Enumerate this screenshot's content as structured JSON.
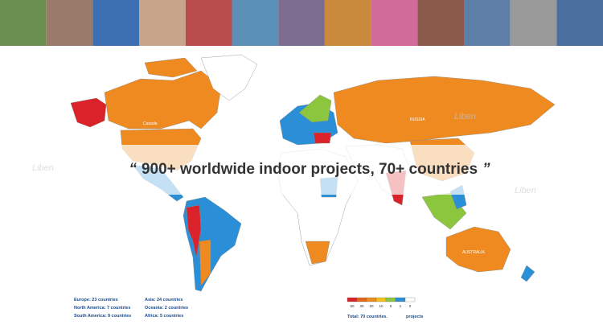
{
  "headline": {
    "open_quote": "“",
    "text": "900+ worldwide indoor projects, 70+ countries",
    "close_quote": "”"
  },
  "map_labels": {
    "canada": "Canada",
    "russia": "RUSSIA",
    "australia": "AUSTRALIA"
  },
  "watermark": "Liben",
  "regions": [
    "Europe: 23 countries",
    "North America: 7 countries",
    "South America: 9 countries",
    "Asia: 24 countries",
    "Oceania: 2 countries",
    "Africa: 5 countries"
  ],
  "scale": {
    "labels": [
      "50",
      "30",
      "20",
      "10",
      "5",
      "1",
      "0"
    ],
    "colors": [
      "#d9222a",
      "#e2651c",
      "#ee8a1f",
      "#f2c21b",
      "#8cc63f",
      "#2a8fd6",
      "#ffffff"
    ]
  },
  "total": "Total: 70 countries.",
  "unit": "projects"
}
